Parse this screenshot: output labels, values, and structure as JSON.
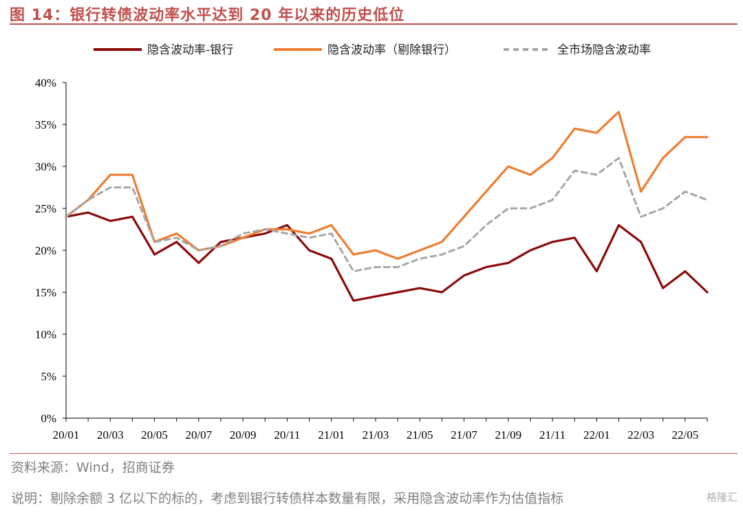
{
  "title": "图 14：银行转债波动率水平达到 20 年以来的历史低位",
  "source": "资料来源：Wind，招商证券",
  "note": "说明：剔除余额 3 亿以下的标的，考虑到银行转债样本数量有限，采用隐含波动率作为估值指标",
  "watermark": "格隆汇",
  "chart_data": {
    "type": "line",
    "x": [
      "20/01",
      "20/02",
      "20/03",
      "20/04",
      "20/05",
      "20/06",
      "20/07",
      "20/08",
      "20/09",
      "20/10",
      "20/11",
      "20/12",
      "21/01",
      "21/02",
      "21/03",
      "21/04",
      "21/05",
      "21/06",
      "21/07",
      "21/08",
      "21/09",
      "21/10",
      "21/11",
      "21/12",
      "22/01",
      "22/02",
      "22/03",
      "22/04",
      "22/05",
      "22/06"
    ],
    "x_ticks": [
      "20/01",
      "20/03",
      "20/05",
      "20/07",
      "20/09",
      "20/11",
      "21/01",
      "21/03",
      "21/05",
      "21/07",
      "21/09",
      "21/11",
      "22/01",
      "22/03",
      "22/05"
    ],
    "y_ticks": [
      "0%",
      "5%",
      "10%",
      "15%",
      "20%",
      "25%",
      "30%",
      "35%",
      "40%"
    ],
    "ylim": [
      0,
      40
    ],
    "grid": false,
    "legend_position": "top",
    "series": [
      {
        "name": "隐含波动率-银行",
        "color": "#8b0a0a",
        "style": "solid",
        "values": [
          24,
          24.5,
          23.5,
          24,
          19.5,
          21,
          18.5,
          21,
          21.5,
          22,
          23,
          20,
          19,
          14,
          14.5,
          15,
          15.5,
          15,
          17,
          18,
          18.5,
          20,
          21,
          21.5,
          17.5,
          23,
          21,
          15.5,
          17.5,
          15
        ]
      },
      {
        "name": "隐含波动率（剔除银行）",
        "color": "#ed7d31",
        "style": "solid",
        "values": [
          24,
          26,
          29,
          29,
          21,
          22,
          20,
          20.5,
          21.5,
          22.5,
          22.5,
          22,
          23,
          19.5,
          20,
          19,
          20,
          21,
          24,
          27,
          30,
          29,
          31,
          34.5,
          34,
          36.5,
          27,
          31,
          33.5,
          33.5
        ]
      },
      {
        "name": "全市场隐含波动率",
        "color": "#a6a6a6",
        "style": "dashed",
        "values": [
          24,
          26,
          27.5,
          27.5,
          21,
          21.5,
          20,
          20.5,
          22,
          22.5,
          22,
          21.5,
          22,
          17.5,
          18,
          18,
          19,
          19.5,
          20.5,
          23,
          25,
          25,
          26,
          29.5,
          29,
          31,
          24,
          25,
          27,
          26
        ]
      }
    ]
  }
}
